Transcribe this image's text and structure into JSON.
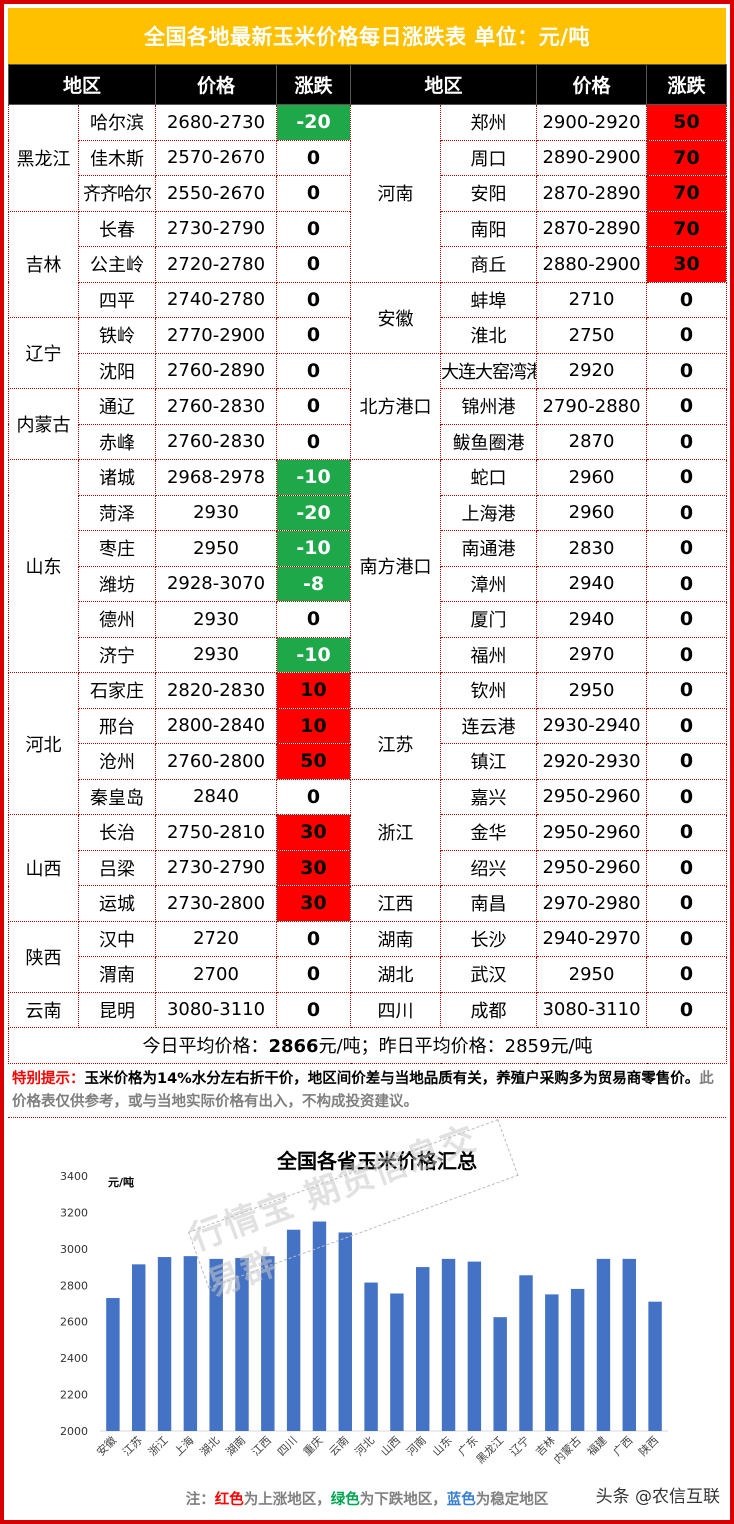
{
  "title": "全国各地最新玉米价格每日涨跌表    单位：元/吨",
  "headers": [
    "地区",
    "价格",
    "涨跌",
    "地区",
    "价格",
    "涨跌"
  ],
  "rows": [
    {
      "l_region": "黑龙江",
      "l_span": 3,
      "l_city": "哈尔滨",
      "l_price": "2680-2730",
      "l_chg": "-20",
      "r_region": "河南",
      "r_span": 5,
      "r_city": "郑州",
      "r_price": "2900-2920",
      "r_chg": "50"
    },
    {
      "l_city": "佳木斯",
      "l_price": "2570-2670",
      "l_chg": "0",
      "r_city": "周口",
      "r_price": "2890-2900",
      "r_chg": "70"
    },
    {
      "l_city": "齐齐哈尔",
      "l_price": "2550-2670",
      "l_chg": "0",
      "r_city": "安阳",
      "r_price": "2870-2890",
      "r_chg": "70"
    },
    {
      "l_region": "吉林",
      "l_span": 3,
      "l_city": "长春",
      "l_price": "2730-2790",
      "l_chg": "0",
      "r_city": "南阳",
      "r_price": "2870-2890",
      "r_chg": "70"
    },
    {
      "l_city": "公主岭",
      "l_price": "2720-2780",
      "l_chg": "0",
      "r_city": "商丘",
      "r_price": "2880-2900",
      "r_chg": "30"
    },
    {
      "l_city": "四平",
      "l_price": "2740-2780",
      "l_chg": "0",
      "r_region": "安徽",
      "r_span": 2,
      "r_city": "蚌埠",
      "r_price": "2710",
      "r_chg": "0"
    },
    {
      "l_region": "辽宁",
      "l_span": 2,
      "l_city": "铁岭",
      "l_price": "2770-2900",
      "l_chg": "0",
      "r_city": "淮北",
      "r_price": "2750",
      "r_chg": "0"
    },
    {
      "l_city": "沈阳",
      "l_price": "2760-2890",
      "l_chg": "0",
      "r_region": "北方港口",
      "r_span": 3,
      "r_city": "大连大窑湾港",
      "r_price": "2920",
      "r_chg": "0"
    },
    {
      "l_region": "内蒙古",
      "l_span": 2,
      "l_city": "通辽",
      "l_price": "2760-2830",
      "l_chg": "0",
      "r_city": "锦州港",
      "r_price": "2790-2880",
      "r_chg": "0"
    },
    {
      "l_city": "赤峰",
      "l_price": "2760-2830",
      "l_chg": "0",
      "r_city": "鲅鱼圈港",
      "r_price": "2870",
      "r_chg": "0"
    },
    {
      "l_region": "山东",
      "l_span": 6,
      "l_city": "诸城",
      "l_price": "2968-2978",
      "l_chg": "-10",
      "r_region": "南方港口",
      "r_span": 6,
      "r_city": "蛇口",
      "r_price": "2960",
      "r_chg": "0"
    },
    {
      "l_city": "菏泽",
      "l_price": "2930",
      "l_chg": "-20",
      "r_city": "上海港",
      "r_price": "2960",
      "r_chg": "0"
    },
    {
      "l_city": "枣庄",
      "l_price": "2950",
      "l_chg": "-10",
      "r_city": "南通港",
      "r_price": "2830",
      "r_chg": "0"
    },
    {
      "l_city": "潍坊",
      "l_price": "2928-3070",
      "l_chg": "-8",
      "r_city": "漳州",
      "r_price": "2940",
      "r_chg": "0"
    },
    {
      "l_city": "德州",
      "l_price": "2930",
      "l_chg": "0",
      "r_city": "厦门",
      "r_price": "2940",
      "r_chg": "0"
    },
    {
      "l_city": "济宁",
      "l_price": "2930",
      "l_chg": "-10",
      "r_city": "福州",
      "r_price": "2970",
      "r_chg": "0"
    },
    {
      "l_region": "河北",
      "l_span": 4,
      "l_city": "石家庄",
      "l_price": "2820-2830",
      "l_chg": "10",
      "r_region": "",
      "r_span": 1,
      "r_city": "钦州",
      "r_price": "2950",
      "r_chg": "0"
    },
    {
      "l_city": "邢台",
      "l_price": "2800-2840",
      "l_chg": "10",
      "r_region": "江苏",
      "r_span": 2,
      "r_city": "连云港",
      "r_price": "2930-2940",
      "r_chg": "0"
    },
    {
      "l_city": "沧州",
      "l_price": "2760-2800",
      "l_chg": "50",
      "r_city": "镇江",
      "r_price": "2920-2930",
      "r_chg": "0"
    },
    {
      "l_city": "秦皇岛",
      "l_price": "2840",
      "l_chg": "0",
      "r_region": "浙江",
      "r_span": 3,
      "r_city": "嘉兴",
      "r_price": "2950-2960",
      "r_chg": "0"
    },
    {
      "l_region": "山西",
      "l_span": 3,
      "l_city": "长治",
      "l_price": "2750-2810",
      "l_chg": "30",
      "r_city": "金华",
      "r_price": "2950-2960",
      "r_chg": "0"
    },
    {
      "l_city": "吕梁",
      "l_price": "2730-2790",
      "l_chg": "30",
      "r_city": "绍兴",
      "r_price": "2950-2960",
      "r_chg": "0"
    },
    {
      "l_city": "运城",
      "l_price": "2730-2800",
      "l_chg": "30",
      "r_region": "江西",
      "r_span": 1,
      "r_city": "南昌",
      "r_price": "2970-2980",
      "r_chg": "0"
    },
    {
      "l_region": "陕西",
      "l_span": 2,
      "l_city": "汉中",
      "l_price": "2720",
      "l_chg": "0",
      "r_region": "湖南",
      "r_span": 1,
      "r_city": "长沙",
      "r_price": "2940-2970",
      "r_chg": "0"
    },
    {
      "l_city": "渭南",
      "l_price": "2700",
      "l_chg": "0",
      "r_region": "湖北",
      "r_span": 1,
      "r_city": "武汉",
      "r_price": "2950",
      "r_chg": "0"
    },
    {
      "l_region": "云南",
      "l_span": 1,
      "l_city": "昆明",
      "l_price": "3080-3110",
      "l_chg": "0",
      "r_region": "四川",
      "r_span": 1,
      "r_city": "成都",
      "r_price": "3080-3110",
      "r_chg": "0"
    }
  ],
  "average": {
    "today_label": "今日平均价格：",
    "today_value": "2866",
    "today_unit": "元/吨；昨日平均价格：",
    "yesterday_value": "2859",
    "yesterday_unit": "元/吨"
  },
  "tip": {
    "label": "特别提示：",
    "text": "玉米价格为14%水分左右折干价，地区间价差与当地品质有关，养殖户采购多为贸易商零售价。",
    "grey": "此价格表仅供参考，或与当地实际价格有出入，不构成投资建议。"
  },
  "watermark": "行情宝 期货信息交易群",
  "chart_data": {
    "type": "bar",
    "title": "全国各省玉米价格汇总",
    "ylabel": "元/吨",
    "ylim": [
      2000,
      3400
    ],
    "yticks": [
      "3400",
      "3200",
      "3000",
      "2800",
      "2600",
      "2400",
      "2200",
      "2000"
    ],
    "categories": [
      "安徽",
      "江苏",
      "浙江",
      "上海",
      "湖北",
      "湖南",
      "江西",
      "四川",
      "重庆",
      "云南",
      "河北",
      "山西",
      "河南",
      "山东",
      "广东",
      "黑龙江",
      "辽宁",
      "吉林",
      "内蒙古",
      "福建",
      "广西",
      "陕西"
    ],
    "values": [
      2730,
      2915,
      2955,
      2960,
      2945,
      2950,
      2960,
      3105,
      3150,
      3090,
      2815,
      2755,
      2900,
      2945,
      2930,
      2625,
      2855,
      2750,
      2780,
      2945,
      2945,
      2710
    ],
    "bar_color": "#4472c4",
    "grid": false
  },
  "note": {
    "prefix": "注：",
    "red": "红色",
    "red_text": "为上涨地区，",
    "green": "绿色",
    "green_text": "为下跌地区，",
    "blue": "蓝色",
    "blue_text": "为稳定地区"
  },
  "brand": "头条 @农信互联"
}
